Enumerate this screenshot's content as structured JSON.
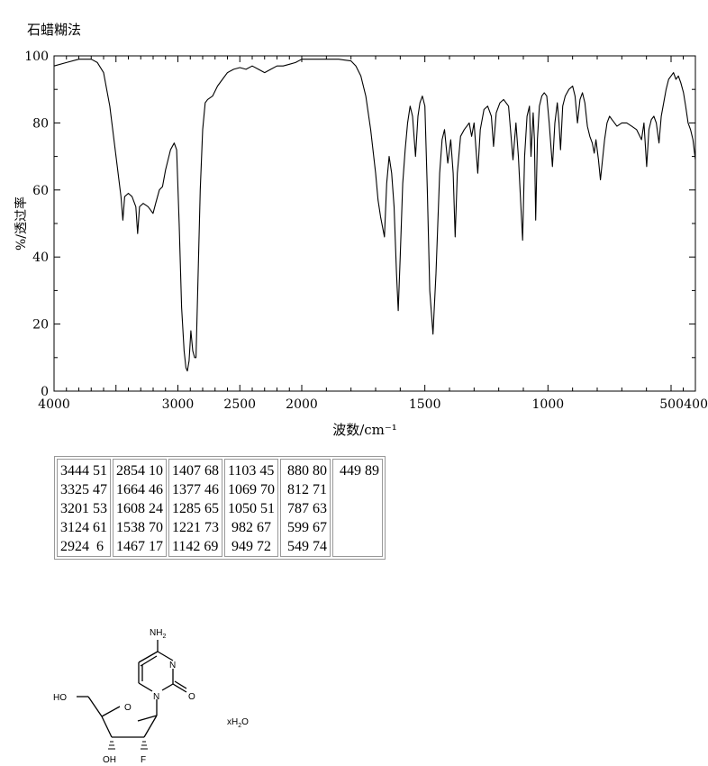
{
  "method_label": "石蜡糊法",
  "chart_data": {
    "type": "line",
    "xlabel": "波数/cm⁻¹",
    "ylabel": "%/透过率",
    "x_axis": {
      "segments": [
        [
          4000,
          2000
        ],
        [
          2000,
          500
        ],
        [
          500,
          400
        ]
      ]
    },
    "x_tick_labels": [
      {
        "x": 4000,
        "label": "4000"
      },
      {
        "x": 3000,
        "label": "3000"
      },
      {
        "x": 2500,
        "label": "2500"
      },
      {
        "x": 2000,
        "label": "2000"
      },
      {
        "x": 1500,
        "label": "1500"
      },
      {
        "x": 1000,
        "label": "1000"
      },
      {
        "x": 500,
        "label": "500"
      },
      {
        "x": 400,
        "label": "400"
      }
    ],
    "ylim": [
      0,
      100
    ],
    "y_tick_labels": [
      "0",
      "20",
      "40",
      "60",
      "80",
      "100"
    ],
    "grid": false,
    "series": [
      {
        "values": [
          [
            4000,
            97
          ],
          [
            3900,
            98
          ],
          [
            3800,
            99
          ],
          [
            3700,
            99
          ],
          [
            3650,
            98
          ],
          [
            3600,
            95
          ],
          [
            3550,
            85
          ],
          [
            3500,
            70
          ],
          [
            3460,
            58
          ],
          [
            3444,
            51
          ],
          [
            3430,
            58
          ],
          [
            3400,
            59
          ],
          [
            3370,
            58
          ],
          [
            3340,
            55
          ],
          [
            3325,
            47
          ],
          [
            3310,
            55
          ],
          [
            3280,
            56
          ],
          [
            3240,
            55
          ],
          [
            3201,
            53
          ],
          [
            3180,
            56
          ],
          [
            3150,
            60
          ],
          [
            3124,
            61
          ],
          [
            3100,
            66
          ],
          [
            3060,
            72
          ],
          [
            3030,
            74
          ],
          [
            3010,
            72
          ],
          [
            2990,
            50
          ],
          [
            2970,
            25
          ],
          [
            2950,
            12
          ],
          [
            2935,
            7
          ],
          [
            2924,
            6
          ],
          [
            2910,
            9
          ],
          [
            2895,
            18
          ],
          [
            2880,
            12
          ],
          [
            2865,
            10
          ],
          [
            2854,
            10
          ],
          [
            2840,
            30
          ],
          [
            2820,
            60
          ],
          [
            2800,
            78
          ],
          [
            2780,
            86
          ],
          [
            2760,
            87
          ],
          [
            2720,
            88
          ],
          [
            2680,
            91
          ],
          [
            2640,
            93
          ],
          [
            2600,
            95
          ],
          [
            2550,
            96
          ],
          [
            2500,
            96.5
          ],
          [
            2450,
            96
          ],
          [
            2400,
            97
          ],
          [
            2350,
            96
          ],
          [
            2300,
            95
          ],
          [
            2250,
            96
          ],
          [
            2200,
            97
          ],
          [
            2150,
            97
          ],
          [
            2100,
            97.5
          ],
          [
            2050,
            98
          ],
          [
            2000,
            99
          ],
          [
            1950,
            99
          ],
          [
            1900,
            99
          ],
          [
            1850,
            99
          ],
          [
            1800,
            98.5
          ],
          [
            1780,
            97
          ],
          [
            1760,
            94
          ],
          [
            1740,
            88
          ],
          [
            1720,
            78
          ],
          [
            1700,
            65
          ],
          [
            1690,
            57
          ],
          [
            1680,
            52
          ],
          [
            1664,
            46
          ],
          [
            1655,
            62
          ],
          [
            1645,
            70
          ],
          [
            1635,
            65
          ],
          [
            1625,
            55
          ],
          [
            1615,
            35
          ],
          [
            1608,
            24
          ],
          [
            1600,
            40
          ],
          [
            1590,
            62
          ],
          [
            1580,
            72
          ],
          [
            1570,
            80
          ],
          [
            1560,
            85
          ],
          [
            1550,
            82
          ],
          [
            1538,
            70
          ],
          [
            1528,
            82
          ],
          [
            1520,
            86
          ],
          [
            1510,
            88
          ],
          [
            1500,
            85
          ],
          [
            1490,
            60
          ],
          [
            1480,
            30
          ],
          [
            1467,
            17
          ],
          [
            1455,
            35
          ],
          [
            1440,
            65
          ],
          [
            1430,
            75
          ],
          [
            1420,
            78
          ],
          [
            1407,
            68
          ],
          [
            1395,
            75
          ],
          [
            1385,
            65
          ],
          [
            1377,
            46
          ],
          [
            1368,
            65
          ],
          [
            1355,
            76
          ],
          [
            1340,
            78
          ],
          [
            1320,
            80
          ],
          [
            1310,
            76
          ],
          [
            1300,
            80
          ],
          [
            1285,
            65
          ],
          [
            1275,
            78
          ],
          [
            1260,
            84
          ],
          [
            1245,
            85
          ],
          [
            1230,
            82
          ],
          [
            1221,
            73
          ],
          [
            1210,
            83
          ],
          [
            1195,
            86
          ],
          [
            1180,
            87
          ],
          [
            1160,
            85
          ],
          [
            1142,
            69
          ],
          [
            1130,
            80
          ],
          [
            1120,
            70
          ],
          [
            1110,
            55
          ],
          [
            1103,
            45
          ],
          [
            1095,
            70
          ],
          [
            1085,
            82
          ],
          [
            1075,
            85
          ],
          [
            1069,
            70
          ],
          [
            1060,
            83
          ],
          [
            1055,
            75
          ],
          [
            1050,
            51
          ],
          [
            1043,
            75
          ],
          [
            1035,
            85
          ],
          [
            1025,
            88
          ],
          [
            1015,
            89
          ],
          [
            1005,
            88
          ],
          [
            995,
            80
          ],
          [
            982,
            67
          ],
          [
            972,
            80
          ],
          [
            962,
            86
          ],
          [
            955,
            80
          ],
          [
            949,
            72
          ],
          [
            940,
            85
          ],
          [
            930,
            88
          ],
          [
            915,
            90
          ],
          [
            900,
            91
          ],
          [
            890,
            88
          ],
          [
            880,
            80
          ],
          [
            870,
            87
          ],
          [
            860,
            89
          ],
          [
            850,
            86
          ],
          [
            840,
            79
          ],
          [
            830,
            76
          ],
          [
            820,
            74
          ],
          [
            812,
            71
          ],
          [
            805,
            75
          ],
          [
            795,
            69
          ],
          [
            787,
            63
          ],
          [
            780,
            68
          ],
          [
            770,
            75
          ],
          [
            760,
            80
          ],
          [
            750,
            82
          ],
          [
            740,
            81
          ],
          [
            720,
            79
          ],
          [
            700,
            80
          ],
          [
            680,
            80
          ],
          [
            660,
            79
          ],
          [
            640,
            78
          ],
          [
            620,
            75
          ],
          [
            610,
            80
          ],
          [
            599,
            67
          ],
          [
            590,
            78
          ],
          [
            580,
            81
          ],
          [
            570,
            82
          ],
          [
            560,
            80
          ],
          [
            549,
            74
          ],
          [
            540,
            82
          ],
          [
            530,
            86
          ],
          [
            520,
            90
          ],
          [
            510,
            93
          ],
          [
            500,
            94
          ],
          [
            490,
            95
          ],
          [
            480,
            93
          ],
          [
            470,
            94
          ],
          [
            460,
            92
          ],
          [
            449,
            89
          ],
          [
            440,
            85
          ],
          [
            430,
            80
          ],
          [
            420,
            78
          ],
          [
            410,
            75
          ],
          [
            400,
            69
          ]
        ]
      }
    ]
  },
  "peak_table": [
    [
      [
        "3444",
        "51"
      ],
      [
        "3325",
        "47"
      ],
      [
        "3201",
        "53"
      ],
      [
        "3124",
        "61"
      ],
      [
        "2924",
        "6"
      ]
    ],
    [
      [
        "2854",
        "10"
      ],
      [
        "1664",
        "46"
      ],
      [
        "1608",
        "24"
      ],
      [
        "1538",
        "70"
      ],
      [
        "1467",
        "17"
      ]
    ],
    [
      [
        "1407",
        "68"
      ],
      [
        "1377",
        "46"
      ],
      [
        "1285",
        "65"
      ],
      [
        "1221",
        "73"
      ],
      [
        "1142",
        "69"
      ]
    ],
    [
      [
        "1103",
        "45"
      ],
      [
        "1069",
        "70"
      ],
      [
        "1050",
        "51"
      ],
      [
        "982",
        "67"
      ],
      [
        "949",
        "72"
      ]
    ],
    [
      [
        "880",
        "80"
      ],
      [
        "812",
        "71"
      ],
      [
        "787",
        "63"
      ],
      [
        "599",
        "67"
      ],
      [
        "549",
        "74"
      ]
    ],
    [
      [
        "449",
        "89"
      ]
    ]
  ],
  "structure": {
    "labels": {
      "nh2": "NH",
      "nh2_sub": "2",
      "n3": "N",
      "n1": "N",
      "o_carbonyl": "O",
      "o_ring": "O",
      "ho": "HO",
      "oh": "OH",
      "f": "F"
    }
  },
  "hydrate": {
    "prefix": "xH",
    "sub": "2",
    "suffix": "O"
  }
}
